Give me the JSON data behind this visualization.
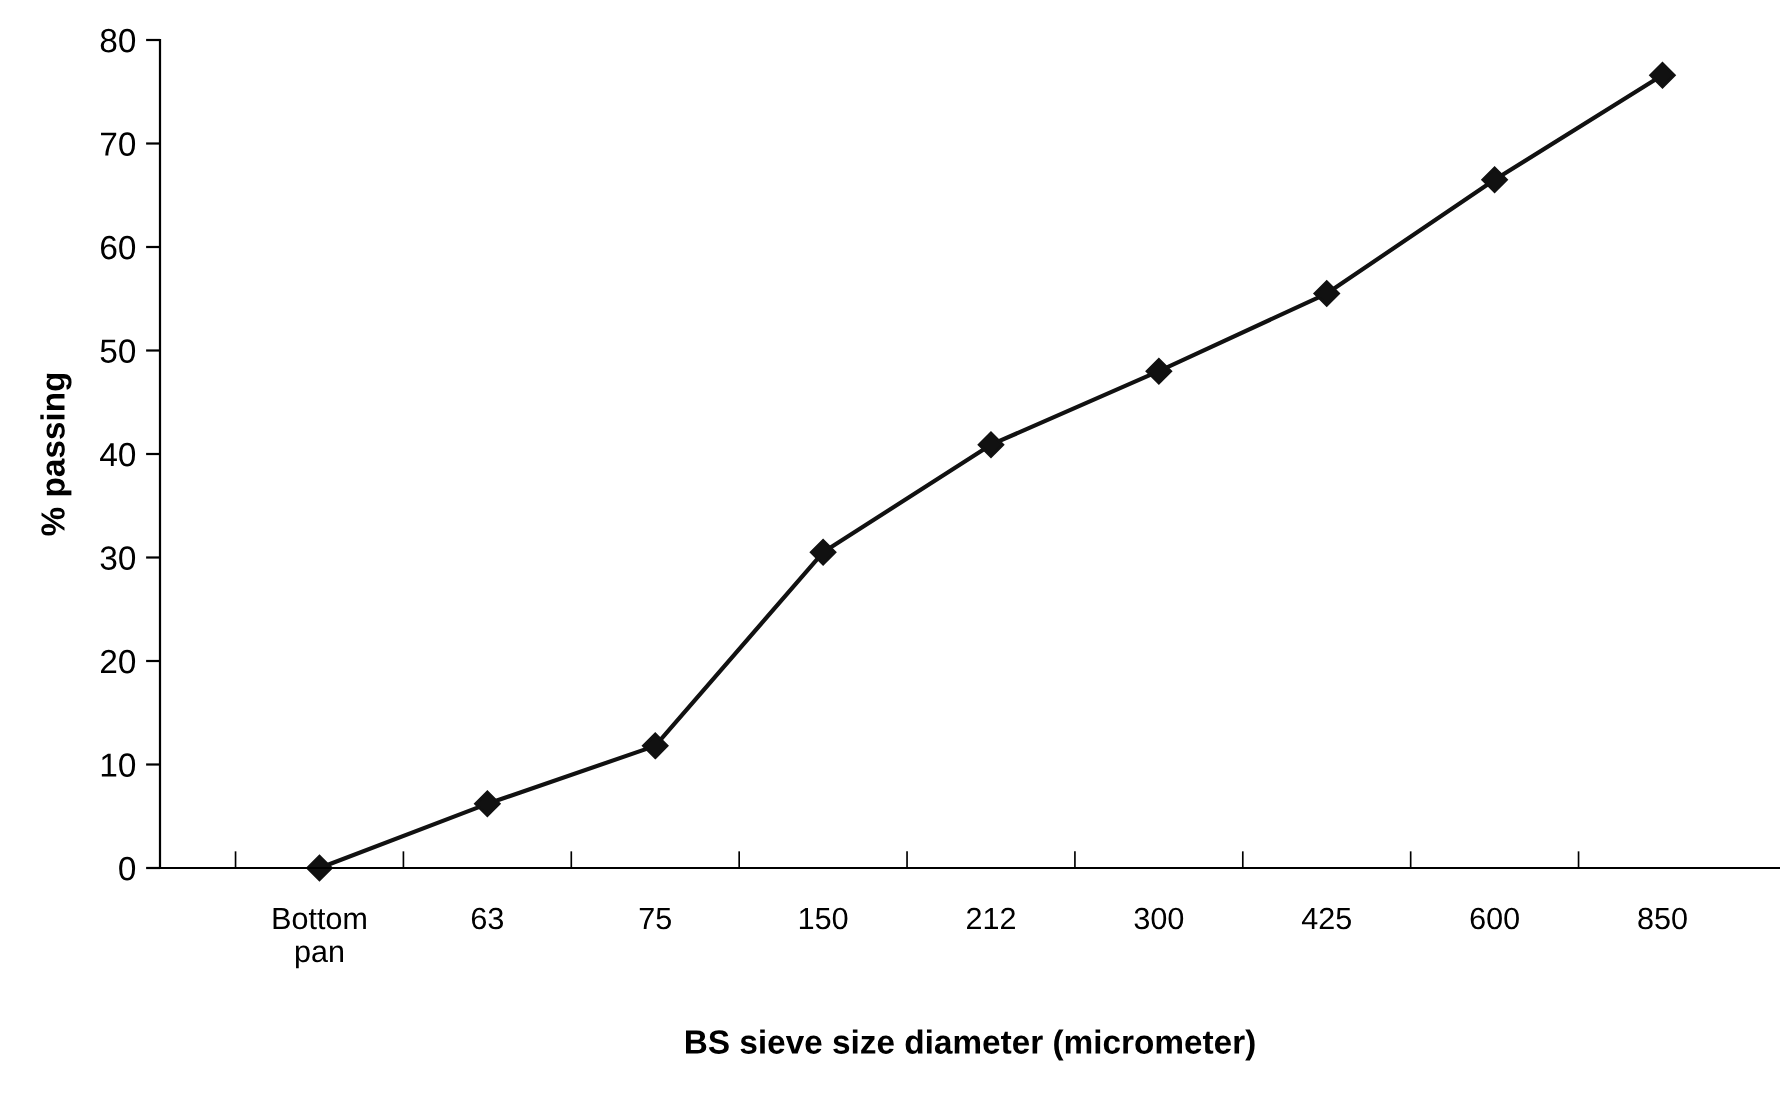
{
  "chart_data": {
    "type": "line",
    "xlabel": "BS sieve size diameter (micrometer)",
    "ylabel": "% passing",
    "categories": [
      "Bottom\npan",
      "63",
      "75",
      "150",
      "212",
      "300",
      "425",
      "600",
      "850"
    ],
    "series": [
      {
        "color": "#111111",
        "values": [
          0,
          6.2,
          11.8,
          30.5,
          40.9,
          48.0,
          55.5,
          66.5,
          76.6
        ]
      }
    ],
    "ylim": [
      0,
      80
    ],
    "yticks": [
      0,
      10,
      20,
      30,
      40,
      50,
      60,
      70,
      80
    ],
    "grid": false,
    "marker": "diamond",
    "line_style": "solid"
  }
}
